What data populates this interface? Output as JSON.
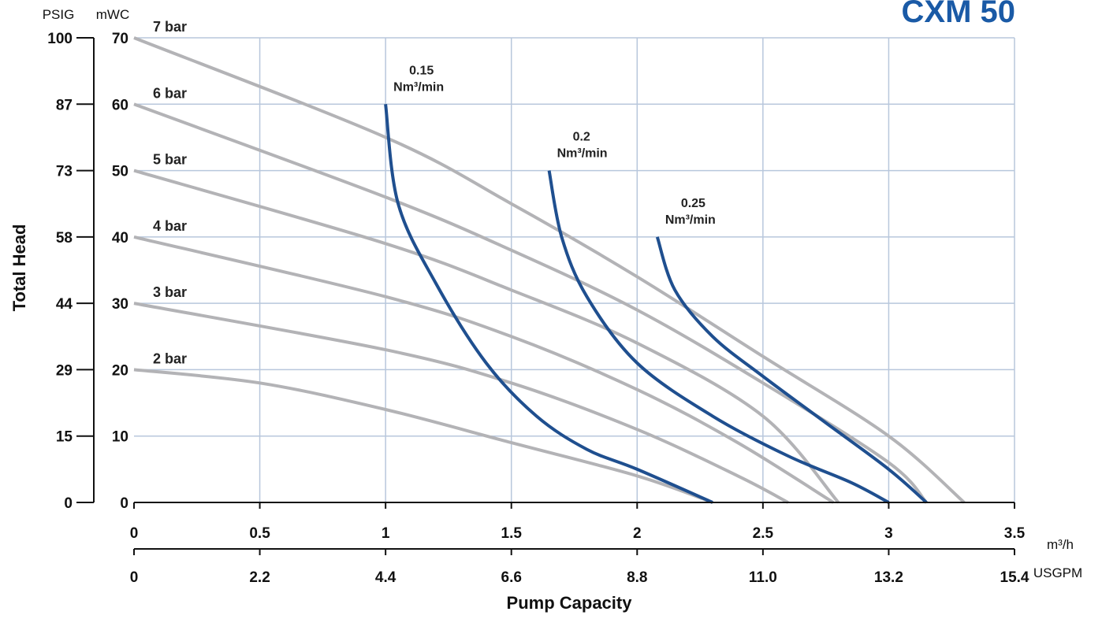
{
  "title": "CXM 50",
  "chart_data": {
    "type": "line",
    "title": "CXM 50",
    "xlabel": "Pump Capacity",
    "ylabel": "Total Head",
    "x_primary": {
      "unit": "m³/h",
      "range": [
        0,
        3.5
      ],
      "ticks": [
        0,
        0.5,
        1,
        1.5,
        2,
        2.5,
        3,
        3.5
      ],
      "tick_labels": [
        "0",
        "0.5",
        "1",
        "1.5",
        "2",
        "2.5",
        "3",
        "3.5"
      ]
    },
    "x_secondary": {
      "unit": "USGPM",
      "tick_labels": [
        "0",
        "2.2",
        "4.4",
        "6.6",
        "8.8",
        "11.0",
        "13.2",
        "15.4"
      ]
    },
    "y_primary": {
      "unit": "mWC",
      "range": [
        0,
        70
      ],
      "ticks": [
        0,
        10,
        20,
        30,
        40,
        50,
        60,
        70
      ],
      "tick_labels": [
        "0",
        "10",
        "20",
        "30",
        "40",
        "50",
        "60",
        "70"
      ]
    },
    "y_secondary": {
      "unit": "PSIG",
      "tick_labels": [
        "0",
        "15",
        "29",
        "44",
        "58",
        "73",
        "87",
        "100"
      ]
    },
    "grid": true,
    "pressure_curves": [
      {
        "label": "7 bar",
        "x": [
          0,
          1,
          1.5,
          2,
          2.5,
          3,
          3.3
        ],
        "y": [
          70,
          55,
          45,
          34,
          22,
          10,
          0
        ]
      },
      {
        "label": "6 bar",
        "x": [
          0,
          1,
          1.5,
          2,
          2.5,
          3,
          3.15
        ],
        "y": [
          60,
          46,
          38,
          29,
          18,
          6,
          0
        ]
      },
      {
        "label": "5 bar",
        "x": [
          0,
          1,
          1.5,
          2,
          2.5,
          2.8
        ],
        "y": [
          50,
          39,
          32,
          24,
          13,
          0
        ]
      },
      {
        "label": "4 bar",
        "x": [
          0,
          1,
          1.5,
          2,
          2.4,
          2.78
        ],
        "y": [
          40,
          31,
          25,
          17,
          9,
          0
        ]
      },
      {
        "label": "3 bar",
        "x": [
          0,
          1,
          1.5,
          2,
          2.4,
          2.6
        ],
        "y": [
          30,
          23,
          18,
          11,
          4,
          0
        ]
      },
      {
        "label": "2 bar",
        "x": [
          0,
          0.5,
          1,
          1.5,
          2,
          2.3
        ],
        "y": [
          20,
          18,
          14,
          9,
          4,
          0
        ]
      }
    ],
    "air_curves": [
      {
        "label": "0.15 Nm³/min",
        "label_lines": [
          "0.15",
          "Nm³/min"
        ],
        "x": [
          1,
          1.05,
          1.2,
          1.4,
          1.6,
          1.8,
          2.0,
          2.3
        ],
        "y": [
          60,
          45,
          33,
          21,
          13,
          8,
          5,
          0
        ]
      },
      {
        "label": "0.2 Nm³/min",
        "label_lines": [
          "0.2",
          "Nm³/min"
        ],
        "x": [
          1.65,
          1.7,
          1.8,
          2.0,
          2.3,
          2.6,
          2.85,
          3.0
        ],
        "y": [
          50,
          40,
          31,
          21,
          13,
          7,
          3,
          0
        ]
      },
      {
        "label": "0.25 Nm³/min",
        "label_lines": [
          "0.25",
          "Nm³/min"
        ],
        "x": [
          2.08,
          2.15,
          2.3,
          2.5,
          2.75,
          3.0,
          3.15
        ],
        "y": [
          40,
          32,
          25,
          19,
          12,
          5,
          0
        ]
      }
    ]
  }
}
